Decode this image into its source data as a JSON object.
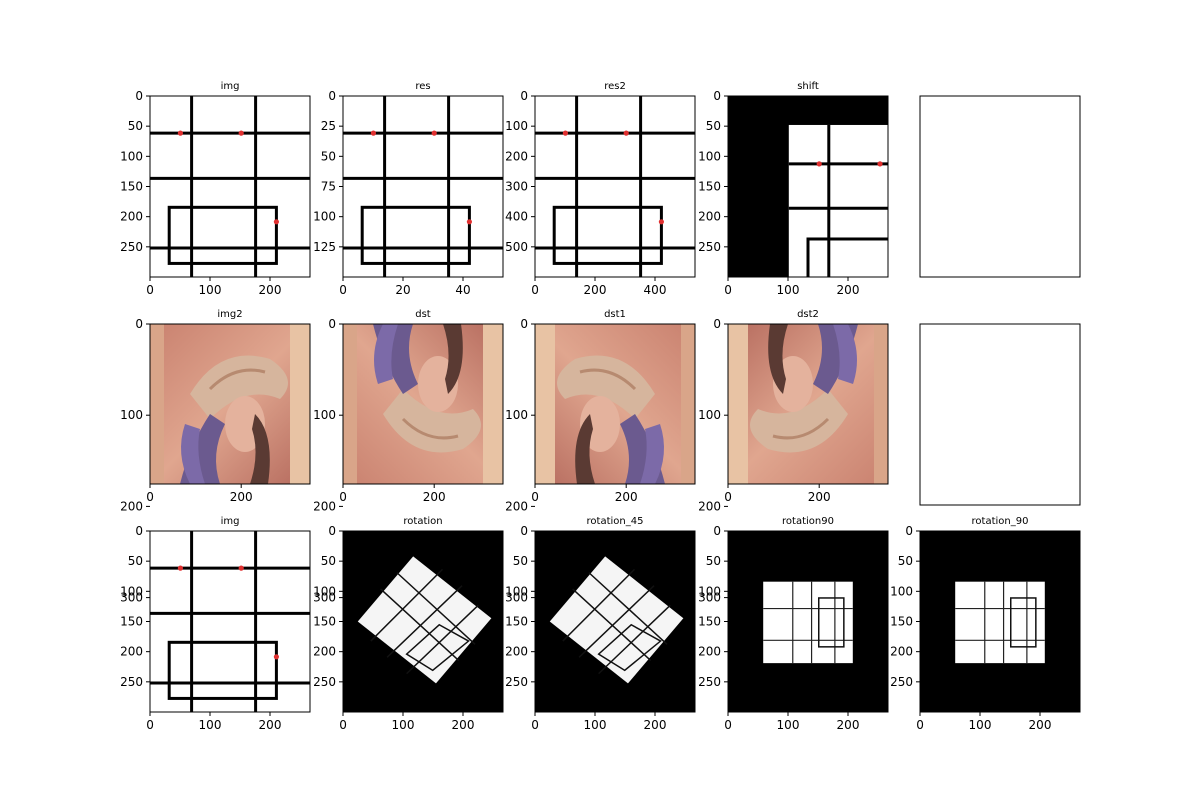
{
  "figure": {
    "rows": 3,
    "cols": 5
  },
  "chart_data": [
    {
      "type": "image",
      "title": "img",
      "content": "grid-lines",
      "xticks": [
        "0",
        "100",
        "200"
      ],
      "yticks": [
        "0",
        "50",
        "100",
        "150",
        "200",
        "250"
      ]
    },
    {
      "type": "image",
      "title": "res",
      "content": "grid-lines",
      "xticks": [
        "0",
        "20",
        "40"
      ],
      "yticks": [
        "0",
        "25",
        "50",
        "75",
        "100",
        "125"
      ]
    },
    {
      "type": "image",
      "title": "res2",
      "content": "grid-lines",
      "xticks": [
        "0",
        "200",
        "400"
      ],
      "yticks": [
        "0",
        "100",
        "200",
        "300",
        "400",
        "500"
      ]
    },
    {
      "type": "image",
      "title": "shift",
      "content": "grid-lines-shifted",
      "xticks": [
        "0",
        "100",
        "200"
      ],
      "yticks": [
        "0",
        "50",
        "100",
        "150",
        "200",
        "250"
      ]
    },
    {
      "type": "empty",
      "title": ""
    },
    {
      "type": "image",
      "title": "img2",
      "content": "portrait",
      "xticks": [
        "0",
        "200"
      ],
      "yticks": [
        "0",
        "100",
        "200",
        "300"
      ]
    },
    {
      "type": "image",
      "title": "dst",
      "content": "portrait-flipped-vertical",
      "xticks": [
        "0",
        "200"
      ],
      "yticks": [
        "0",
        "100",
        "200",
        "300"
      ]
    },
    {
      "type": "image",
      "title": "dst1",
      "content": "portrait-flipped-horizontal",
      "xticks": [
        "0",
        "200"
      ],
      "yticks": [
        "0",
        "100",
        "200",
        "300"
      ]
    },
    {
      "type": "image",
      "title": "dst2",
      "content": "portrait-flipped-both",
      "xticks": [
        "0",
        "200"
      ],
      "yticks": [
        "0",
        "100",
        "200",
        "300"
      ]
    },
    {
      "type": "empty",
      "title": ""
    },
    {
      "type": "image",
      "title": "img",
      "content": "grid-lines",
      "xticks": [
        "0",
        "100",
        "200"
      ],
      "yticks": [
        "0",
        "50",
        "100",
        "150",
        "200",
        "250"
      ]
    },
    {
      "type": "image",
      "title": "rotation",
      "content": "grid-rotated",
      "xticks": [
        "0",
        "100",
        "200"
      ],
      "yticks": [
        "0",
        "50",
        "100",
        "150",
        "200",
        "250"
      ]
    },
    {
      "type": "image",
      "title": "rotation_45",
      "content": "grid-rotated",
      "xticks": [
        "0",
        "100",
        "200"
      ],
      "yticks": [
        "0",
        "50",
        "100",
        "150",
        "200",
        "250"
      ]
    },
    {
      "type": "image",
      "title": "rotation90",
      "content": "grid-rot90",
      "xticks": [
        "0",
        "100",
        "200"
      ],
      "yticks": [
        "0",
        "50",
        "100",
        "150",
        "200",
        "250"
      ]
    },
    {
      "type": "image",
      "title": "rotation_90",
      "content": "grid-rot90",
      "xticks": [
        "0",
        "100",
        "200"
      ],
      "yticks": [
        "0",
        "50",
        "100",
        "150",
        "200",
        "250"
      ]
    }
  ]
}
